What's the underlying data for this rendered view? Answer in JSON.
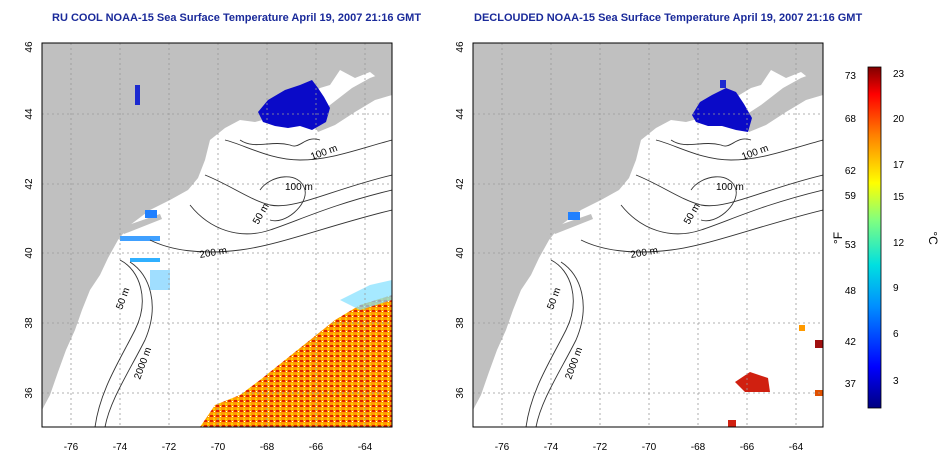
{
  "panels": [
    {
      "title": "RU COOL NOAA-15 Sea Surface Temperature April 19, 2007 21:16 GMT",
      "contour_labels": [
        "100 m",
        "100 m",
        "50 m",
        "200 m",
        "50 m",
        "2000 m"
      ]
    },
    {
      "title": "DECLOUDED NOAA-15 Sea Surface Temperature April 19, 2007 21:16 GMT",
      "contour_labels": [
        "100 m",
        "100 m",
        "50 m",
        "200 m",
        "50 m",
        "2000 m"
      ]
    }
  ],
  "axes": {
    "lon_ticks": [
      "-76",
      "-74",
      "-72",
      "-70",
      "-68",
      "-66",
      "-64"
    ],
    "lat_ticks": [
      "36",
      "38",
      "40",
      "42",
      "44",
      "46"
    ],
    "lon_range": [
      -77.2,
      -63
    ],
    "lat_range": [
      35,
      46
    ]
  },
  "colorbar": {
    "left_unit": "°F",
    "right_unit": "°C",
    "fahrenheit_ticks": [
      "73",
      "68",
      "62",
      "59",
      "53",
      "48",
      "42",
      "37"
    ],
    "celsius_ticks": [
      "23",
      "20",
      "17",
      "15",
      "12",
      "9",
      "6",
      "3"
    ]
  },
  "colors": {
    "land": "#c0c0c0",
    "title": "#1a2a9a",
    "cold": "#0a0ac8",
    "warm": "#e03010"
  }
}
